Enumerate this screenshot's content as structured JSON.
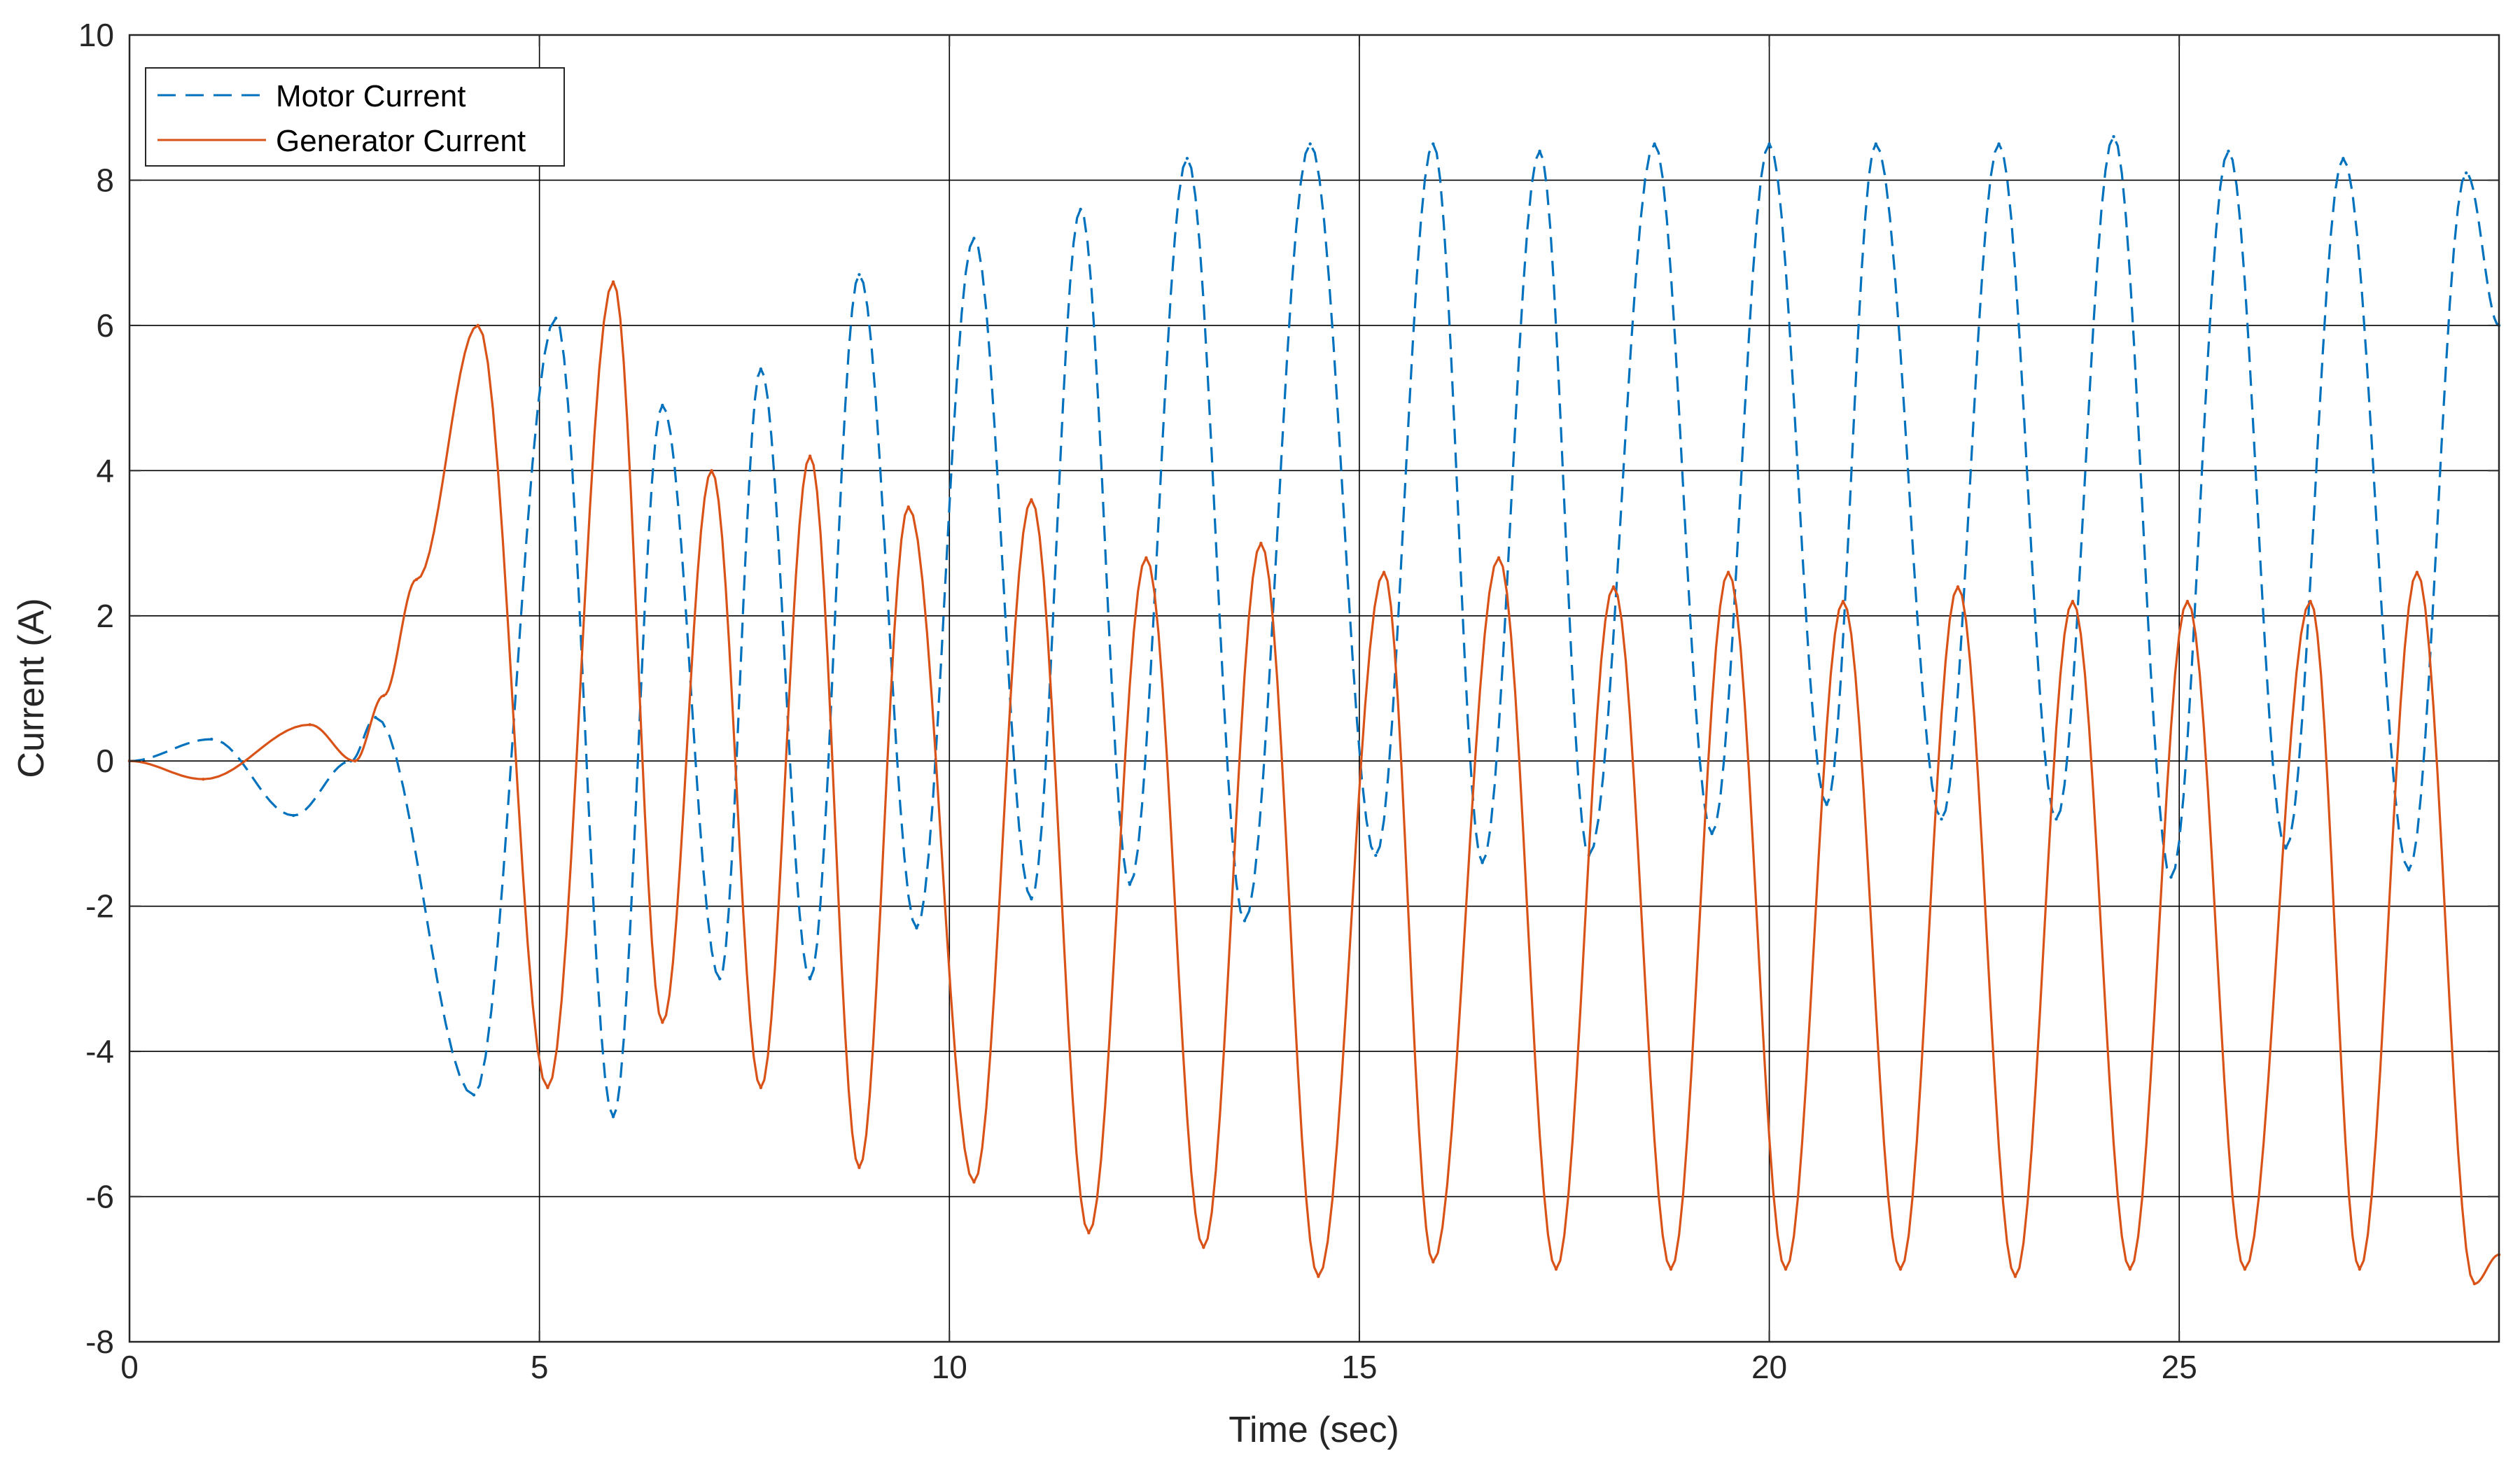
{
  "chart_data": {
    "type": "line",
    "title": "",
    "xlabel": "Time (sec)",
    "ylabel": "Current (A)",
    "xlim": [
      0,
      28.9
    ],
    "ylim": [
      -8,
      10
    ],
    "x_ticks": [
      0,
      5,
      10,
      15,
      20,
      25
    ],
    "y_ticks": [
      -8,
      -6,
      -4,
      -2,
      0,
      2,
      4,
      6,
      8,
      10
    ],
    "grid": true,
    "legend_position": "top-left",
    "series": [
      {
        "name": "Motor Current",
        "color": "#0072BD",
        "style": "dashed",
        "x": [
          0.0,
          1.0,
          2.0,
          2.7,
          3.0,
          4.2,
          5.2,
          5.9,
          6.5,
          7.2,
          7.7,
          8.3,
          8.9,
          9.6,
          10.3,
          11.0,
          11.6,
          12.2,
          12.9,
          13.6,
          14.4,
          15.2,
          15.9,
          16.5,
          17.2,
          17.8,
          18.6,
          19.3,
          20.0,
          20.7,
          21.3,
          22.1,
          22.8,
          23.5,
          24.2,
          24.9,
          25.6,
          26.3,
          27.0,
          27.8,
          28.5,
          28.9
        ],
        "y": [
          0.0,
          0.3,
          -0.75,
          0.0,
          0.6,
          -4.6,
          6.1,
          -4.9,
          4.9,
          -3.0,
          5.4,
          -3.0,
          6.7,
          -2.3,
          7.2,
          -1.9,
          7.6,
          -1.7,
          8.3,
          -2.2,
          8.5,
          -1.3,
          8.5,
          -1.4,
          8.4,
          -1.3,
          8.5,
          -1.0,
          8.5,
          -0.6,
          8.5,
          -0.8,
          8.5,
          -0.8,
          8.6,
          -1.6,
          8.4,
          -1.2,
          8.3,
          -1.5,
          8.1,
          6.0
        ]
      },
      {
        "name": "Generator Current",
        "color": "#D95319",
        "style": "solid",
        "x": [
          0.0,
          0.9,
          2.2,
          2.75,
          3.1,
          3.5,
          4.25,
          5.1,
          5.9,
          6.5,
          7.1,
          7.7,
          8.3,
          8.9,
          9.5,
          10.3,
          11.0,
          11.7,
          12.4,
          13.1,
          13.8,
          14.5,
          15.3,
          15.9,
          16.7,
          17.4,
          18.1,
          18.8,
          19.5,
          20.2,
          20.9,
          21.6,
          22.3,
          23.0,
          23.7,
          24.4,
          25.1,
          25.8,
          26.6,
          27.2,
          27.9,
          28.6,
          28.9
        ],
        "y": [
          0.0,
          -0.25,
          0.5,
          0.0,
          0.9,
          2.5,
          6.0,
          -4.5,
          6.6,
          -3.6,
          4.0,
          -4.5,
          4.2,
          -5.6,
          3.5,
          -5.8,
          3.6,
          -6.5,
          2.8,
          -6.7,
          3.0,
          -7.1,
          2.6,
          -6.9,
          2.8,
          -7.0,
          2.4,
          -7.0,
          2.6,
          -7.0,
          2.2,
          -7.0,
          2.4,
          -7.1,
          2.2,
          -7.0,
          2.2,
          -7.0,
          2.2,
          -7.0,
          2.6,
          -7.2,
          -6.8
        ]
      }
    ]
  }
}
